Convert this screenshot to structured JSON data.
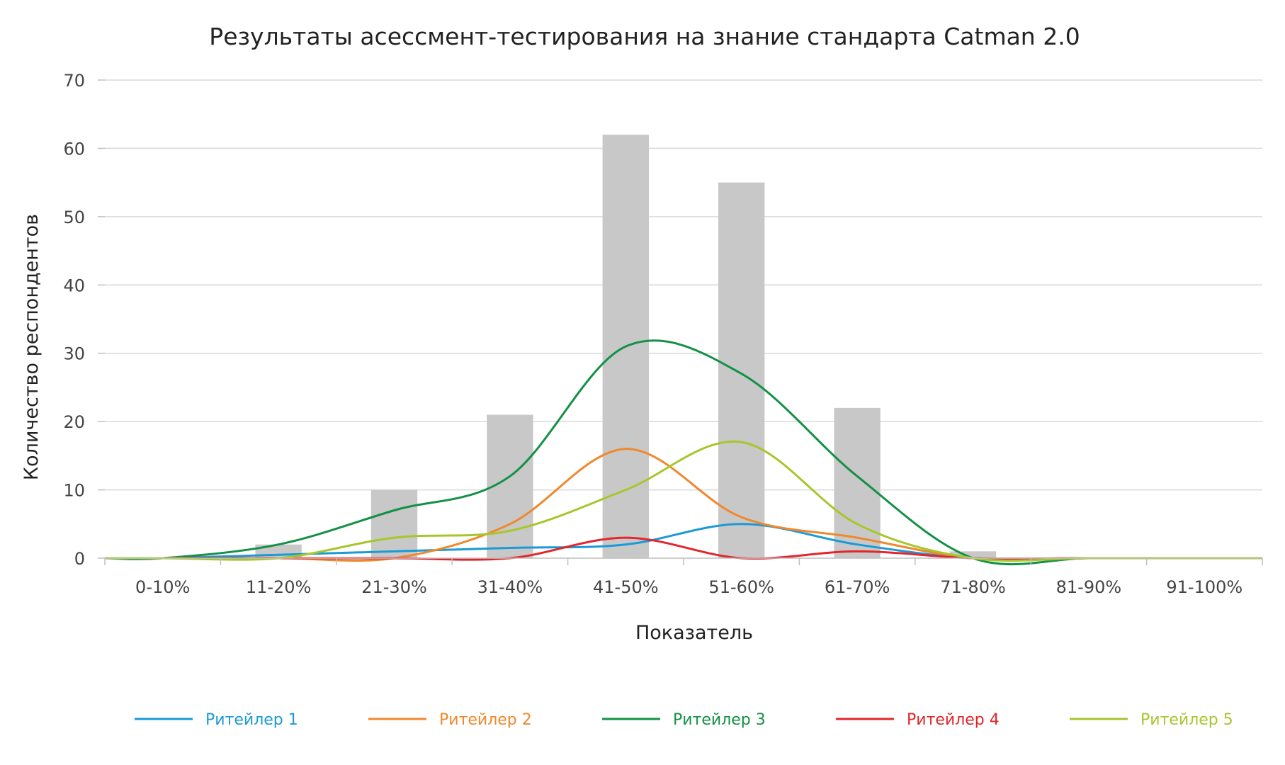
{
  "chart_data": {
    "type": "bar",
    "title": "Результаты асессмент-тестирования на знание стандарта Catman 2.0",
    "xlabel": "Показатель",
    "ylabel": "Количество респондентов",
    "categories": [
      "0-10%",
      "11-20%",
      "21-30%",
      "31-40%",
      "41-50%",
      "51-60%",
      "61-70%",
      "71-80%",
      "81-90%",
      "91-100%"
    ],
    "ylim": [
      0,
      70
    ],
    "yticks": [
      0,
      10,
      20,
      30,
      40,
      50,
      60,
      70
    ],
    "grid": true,
    "legend_position": "bottom",
    "bars": {
      "color": "#c8c8c8",
      "values": [
        0,
        2,
        10,
        21,
        62,
        55,
        22,
        1,
        0,
        0
      ]
    },
    "series": [
      {
        "name": "Ритейлер 1",
        "color": "#1a9ad6",
        "type": "line",
        "values": [
          0,
          0.5,
          1,
          1.5,
          2,
          5,
          2,
          0,
          0,
          0
        ]
      },
      {
        "name": "Ритейлер 2",
        "color": "#f0882c",
        "type": "line",
        "values": [
          0,
          0,
          0,
          5,
          16,
          6,
          3,
          0,
          0,
          0
        ]
      },
      {
        "name": "Ритейлер 3",
        "color": "#149146",
        "type": "line",
        "values": [
          0,
          2,
          7,
          12,
          31,
          27,
          12,
          0,
          0,
          0
        ]
      },
      {
        "name": "Ритейлер 4",
        "color": "#e3262b",
        "type": "line",
        "values": [
          0,
          0,
          0,
          0,
          3,
          0,
          1,
          0,
          0,
          0
        ]
      },
      {
        "name": "Ритейлер 5",
        "color": "#a7c62c",
        "type": "line",
        "values": [
          0,
          0,
          3,
          4,
          10,
          17,
          5,
          0,
          0,
          0
        ]
      }
    ]
  }
}
